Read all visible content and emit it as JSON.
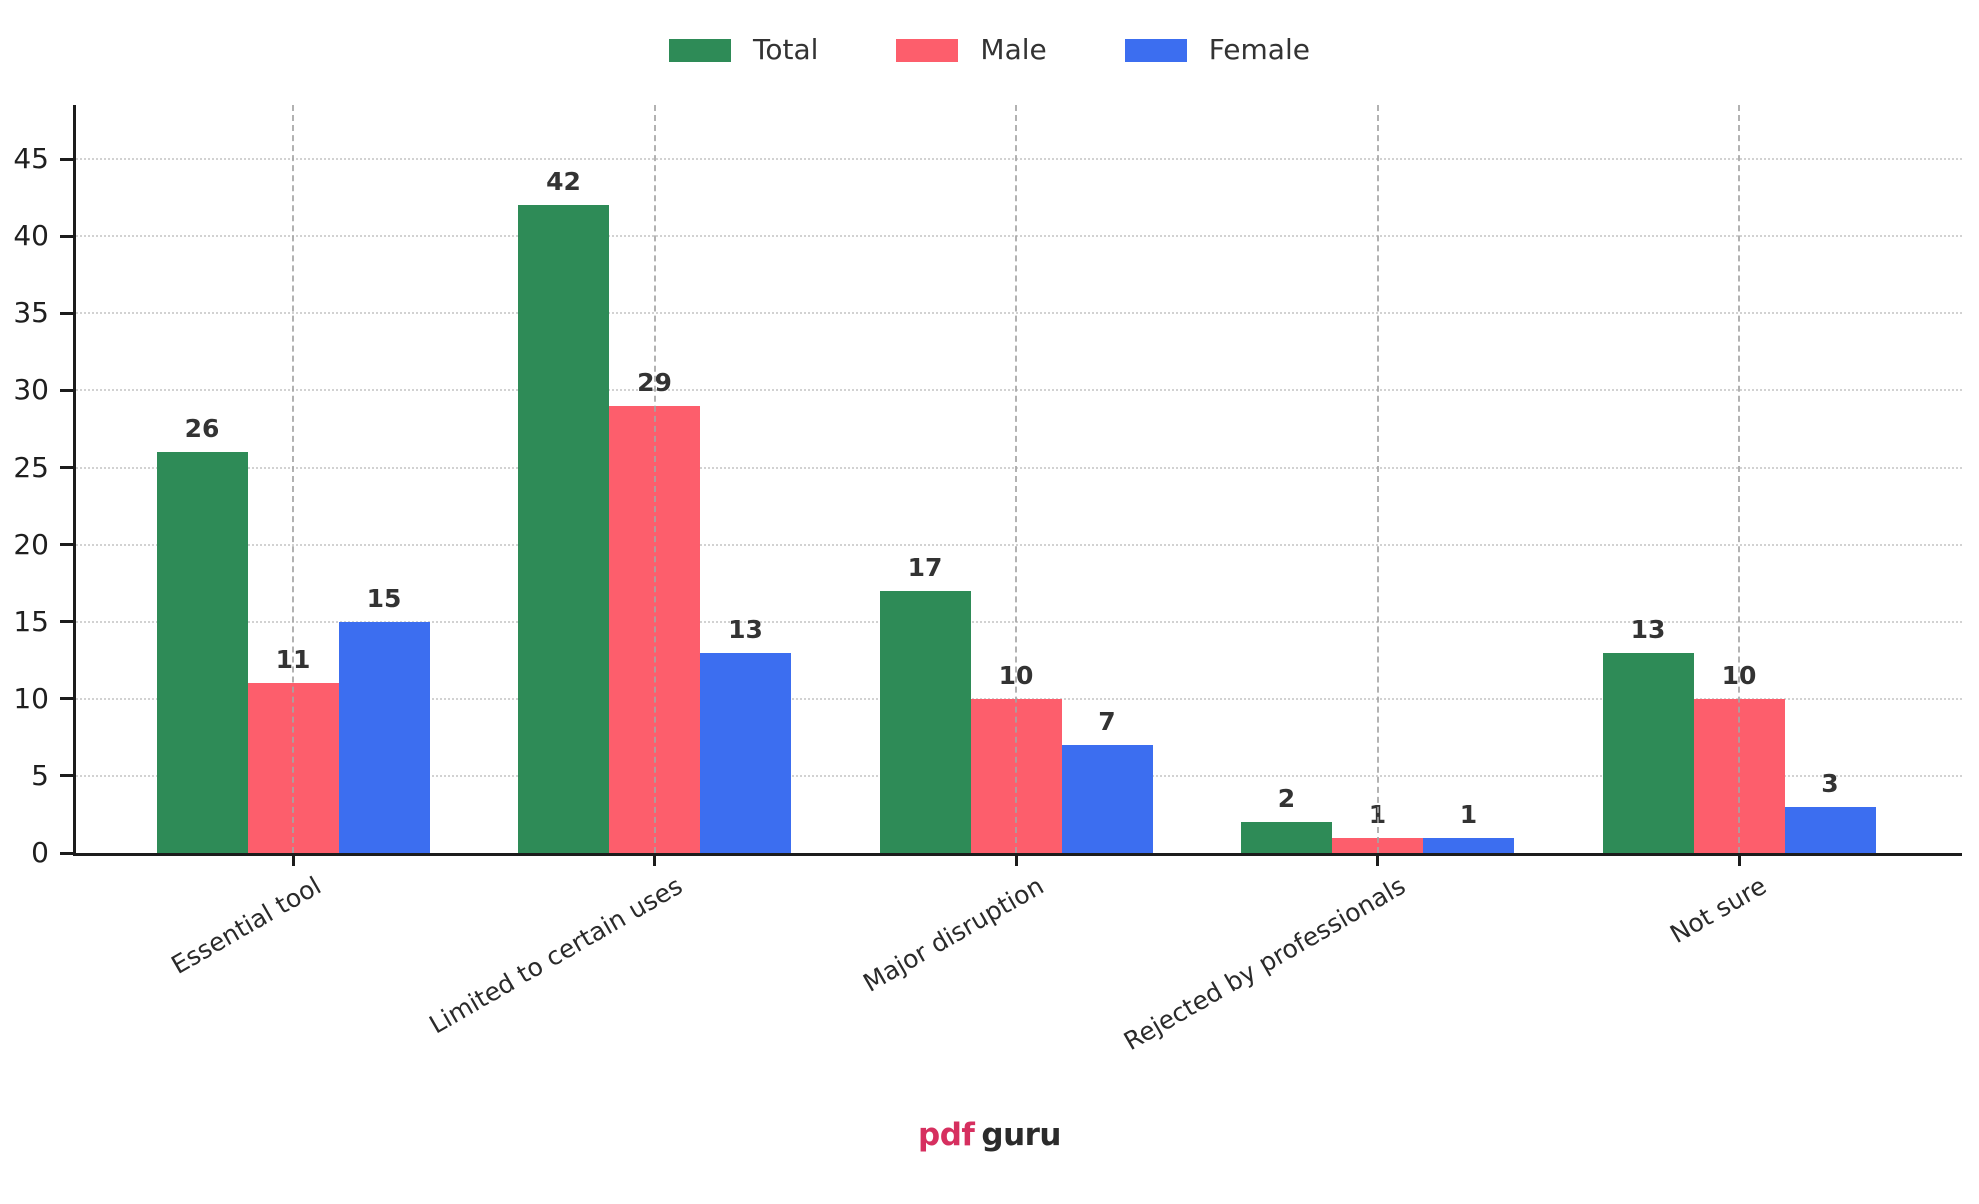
{
  "legend": {
    "items": [
      {
        "label": "Total",
        "color": "#2e8b57"
      },
      {
        "label": "Male",
        "color": "#fd5e6c"
      },
      {
        "label": "Female",
        "color": "#3c6ef0"
      }
    ]
  },
  "chart_data": {
    "type": "bar",
    "categories": [
      "Essential tool",
      "Limited to certain uses",
      "Major disruption",
      "Rejected by professionals",
      "Not sure"
    ],
    "series": [
      {
        "name": "Total",
        "color": "#2e8b57",
        "values": [
          26,
          42,
          17,
          2,
          13
        ]
      },
      {
        "name": "Male",
        "color": "#fd5e6c",
        "values": [
          11,
          29,
          10,
          1,
          10
        ]
      },
      {
        "name": "Female",
        "color": "#3c6ef0",
        "values": [
          15,
          13,
          7,
          1,
          3
        ]
      }
    ],
    "title": "",
    "xlabel": "",
    "ylabel": "",
    "ylim": [
      0,
      48.5
    ],
    "yticks": [
      0,
      5,
      10,
      15,
      20,
      25,
      30,
      35,
      40,
      45
    ],
    "grid": {
      "horizontal": "dotted",
      "vertical": "dashed"
    },
    "legend_position": "top-center",
    "bar_value_labels": true,
    "xtick_rotation_deg": 30
  },
  "footer": {
    "logo": {
      "pdf_text": "pdf",
      "guru_text": "guru",
      "pdf_color": "#d62f5f",
      "guru_color": "#2b2b2b"
    }
  }
}
